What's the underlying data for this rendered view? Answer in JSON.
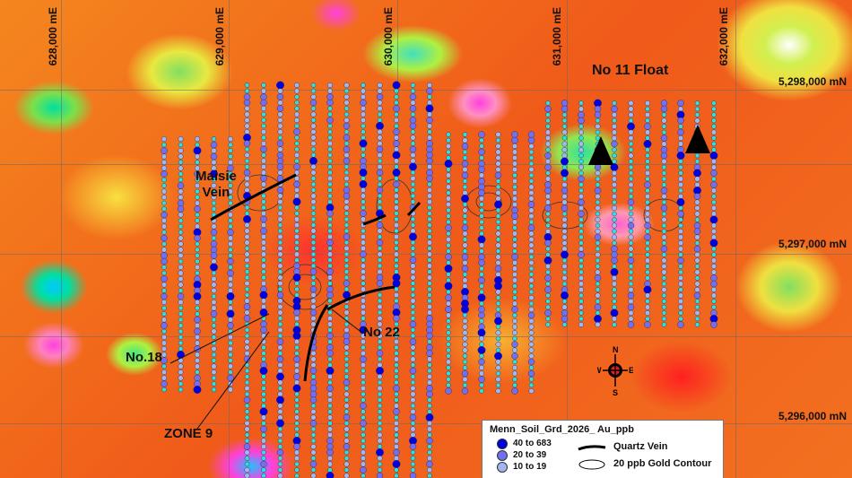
{
  "map": {
    "easting_labels": [
      "628,000 mE",
      "629,000 mE",
      "630,000 mE",
      "631,000 mE",
      "632,000 mE"
    ],
    "northing_labels": [
      "5,298,000 mN",
      "5,297,000 mN",
      "5,296,000 mN"
    ],
    "features": {
      "no11_float": "No 11 Float",
      "maisie_vein": "Maisie\nVein",
      "no18": "No.18",
      "no22": "No 22",
      "zone9": "ZONE 9"
    },
    "compass": {
      "n": "N",
      "s": "S",
      "e": "E",
      "w": "W"
    },
    "colors": {
      "high_au": "#0000e0",
      "mid_au": "#7070f0",
      "low_au": "#a0b8f0",
      "lowest_au": "#30e0e0",
      "vein": "#000000",
      "contour": "#333333"
    }
  },
  "legend": {
    "title": "Menn_Soil_Grd_2026_ Au_ppb",
    "classes": [
      {
        "label": "40 to 683",
        "color": "#0000e0"
      },
      {
        "label": "20 to   39",
        "color": "#7070f0"
      },
      {
        "label": "10 to   19",
        "color": "#a0b8f0"
      }
    ],
    "quartz_vein": "Quartz Vein",
    "gold_contour": "20 ppb Gold Contour"
  }
}
